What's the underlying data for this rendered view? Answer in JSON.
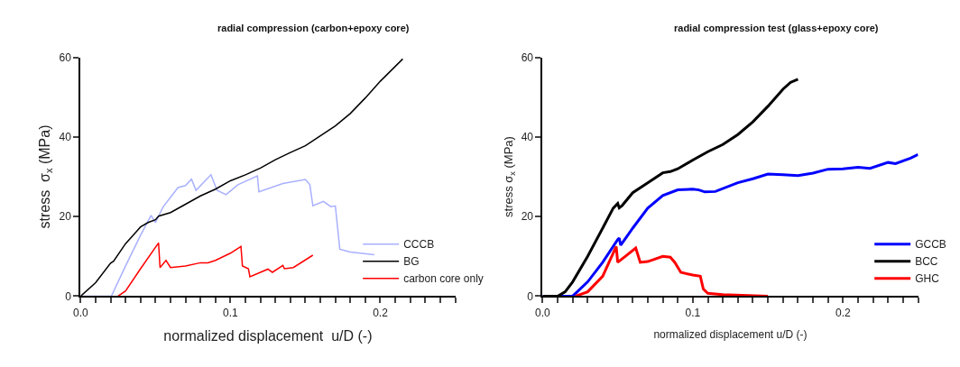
{
  "chart_data": [
    {
      "type": "line",
      "title": "radial compression (carbon+epoxy core)",
      "xlabel": "normalized displacement  u/D (-)",
      "ylabel": "stress  σ$_{x}$ (MPa)",
      "xlim": [
        0,
        0.25
      ],
      "ylim": [
        0,
        60
      ],
      "xticks": [
        {
          "value": 0,
          "label": "0.0"
        },
        {
          "value": 0.01,
          "label": null
        },
        {
          "value": 0.02,
          "label": null
        },
        {
          "value": 0.03,
          "label": null
        },
        {
          "value": 0.04,
          "label": null
        },
        {
          "value": 0.05,
          "label": null
        },
        {
          "value": 0.06,
          "label": null
        },
        {
          "value": 0.07,
          "label": null
        },
        {
          "value": 0.08,
          "label": null
        },
        {
          "value": 0.09,
          "label": null
        },
        {
          "value": 0.1,
          "label": "0.1"
        },
        {
          "value": 0.11,
          "label": null
        },
        {
          "value": 0.12,
          "label": null
        },
        {
          "value": 0.13,
          "label": null
        },
        {
          "value": 0.14,
          "label": null
        },
        {
          "value": 0.15,
          "label": null
        },
        {
          "value": 0.16,
          "label": null
        },
        {
          "value": 0.17,
          "label": null
        },
        {
          "value": 0.18,
          "label": null
        },
        {
          "value": 0.19,
          "label": null
        },
        {
          "value": 0.2,
          "label": "0.2"
        },
        {
          "value": 0.21,
          "label": null
        },
        {
          "value": 0.22,
          "label": null
        },
        {
          "value": 0.23,
          "label": null
        },
        {
          "value": 0.24,
          "label": null
        },
        {
          "value": 0.25,
          "label": null
        }
      ],
      "yticks": [
        0,
        20,
        40,
        60
      ],
      "legend": "bottom right",
      "marker": "none",
      "line_style": "solid",
      "series": [
        {
          "name": "CCCB",
          "color": "#a8b0ff",
          "x": [
            0,
            0.0205,
            0.03,
            0.04,
            0.047,
            0.05,
            0.055,
            0.065,
            0.07,
            0.074,
            0.077,
            0.087,
            0.091,
            0.097,
            0.105,
            0.118,
            0.119,
            0.135,
            0.15,
            0.153,
            0.155,
            0.162,
            0.167,
            0.17,
            0.173,
            0.18,
            0.196
          ],
          "values": [
            0,
            0,
            7.6,
            15.3,
            20.3,
            18.5,
            22.4,
            27.3,
            27.8,
            29.4,
            26.6,
            30.5,
            26.6,
            25.5,
            28,
            30.2,
            26.2,
            28.3,
            29.3,
            28,
            22.7,
            23.8,
            22.5,
            22.7,
            11.8,
            11.1,
            10.4
          ]
        },
        {
          "name": "BG",
          "color": "#000000",
          "x": [
            0,
            0.01,
            0.02,
            0.022,
            0.03,
            0.035,
            0.04,
            0.045,
            0.05,
            0.052,
            0.06,
            0.07,
            0.08,
            0.09,
            0.1,
            0.11,
            0.12,
            0.13,
            0.14,
            0.15,
            0.16,
            0.17,
            0.18,
            0.19,
            0.2,
            0.215
          ],
          "values": [
            0,
            3.4,
            8.3,
            8.8,
            13.2,
            15.3,
            17.4,
            18.5,
            19.2,
            20.1,
            21,
            23.1,
            25.2,
            26.9,
            29,
            30.5,
            32.2,
            34.3,
            36.1,
            37.8,
            40.3,
            42.8,
            45.9,
            49.8,
            54,
            59.6
          ]
        },
        {
          "name": "carbon core only",
          "color": "#ff0000",
          "x": [
            0.025,
            0.03,
            0.04,
            0.052,
            0.053,
            0.057,
            0.06,
            0.07,
            0.08,
            0.085,
            0.09,
            0.1,
            0.107,
            0.108,
            0.112,
            0.113,
            0.125,
            0.128,
            0.135,
            0.136,
            0.142,
            0.155
          ],
          "values": [
            0,
            1.3,
            6.9,
            13.4,
            7.2,
            9,
            7.2,
            7.6,
            8.4,
            8.4,
            9,
            10.8,
            12.5,
            7.6,
            6.9,
            4.9,
            6.8,
            6,
            7.7,
            6.9,
            7.2,
            10.3
          ]
        }
      ]
    },
    {
      "type": "line",
      "title": "radial compression test (glass+epoxy core)",
      "xlabel": "normalized displacement u/D (-)",
      "ylabel": "stress σ$_{x}$ (MPa)",
      "xlim": [
        0,
        0.25
      ],
      "ylim": [
        0,
        60
      ],
      "xticks": [
        {
          "value": 0,
          "label": "0.0"
        },
        {
          "value": 0.01,
          "label": null
        },
        {
          "value": 0.02,
          "label": null
        },
        {
          "value": 0.03,
          "label": null
        },
        {
          "value": 0.04,
          "label": null
        },
        {
          "value": 0.05,
          "label": null
        },
        {
          "value": 0.06,
          "label": null
        },
        {
          "value": 0.07,
          "label": null
        },
        {
          "value": 0.08,
          "label": null
        },
        {
          "value": 0.09,
          "label": null
        },
        {
          "value": 0.1,
          "label": "0.1"
        },
        {
          "value": 0.11,
          "label": null
        },
        {
          "value": 0.12,
          "label": null
        },
        {
          "value": 0.13,
          "label": null
        },
        {
          "value": 0.14,
          "label": null
        },
        {
          "value": 0.15,
          "label": null
        },
        {
          "value": 0.16,
          "label": null
        },
        {
          "value": 0.17,
          "label": null
        },
        {
          "value": 0.18,
          "label": null
        },
        {
          "value": 0.19,
          "label": null
        },
        {
          "value": 0.2,
          "label": "0.2"
        },
        {
          "value": 0.21,
          "label": null
        },
        {
          "value": 0.22,
          "label": null
        },
        {
          "value": 0.23,
          "label": null
        },
        {
          "value": 0.24,
          "label": null
        },
        {
          "value": 0.25,
          "label": null
        }
      ],
      "yticks": [
        0,
        20,
        40,
        60
      ],
      "legend": "bottom right",
      "marker": "none",
      "line_style": "solid",
      "series": [
        {
          "name": "GCCB",
          "color": "#0000ff",
          "x": [
            0,
            0.02,
            0.03,
            0.04,
            0.05,
            0.051,
            0.052,
            0.06,
            0.07,
            0.08,
            0.09,
            0.1,
            0.104,
            0.108,
            0.115,
            0.13,
            0.14,
            0.15,
            0.16,
            0.17,
            0.18,
            0.19,
            0.2,
            0.21,
            0.218,
            0.23,
            0.235,
            0.245,
            0.25
          ],
          "values": [
            0,
            0,
            3.6,
            8.5,
            14.2,
            14.6,
            12.8,
            17.1,
            22.1,
            25.3,
            26.7,
            26.9,
            26.7,
            26.2,
            26.3,
            28.5,
            29.5,
            30.7,
            30.5,
            30.3,
            30.9,
            31.9,
            32,
            32.4,
            32.1,
            33.6,
            33.3,
            34.7,
            35.6
          ]
        },
        {
          "name": "BCC",
          "color": "#000000",
          "x": [
            0,
            0.01,
            0.015,
            0.02,
            0.03,
            0.04,
            0.047,
            0.05,
            0.051,
            0.053,
            0.06,
            0.07,
            0.08,
            0.085,
            0.09,
            0.1,
            0.11,
            0.12,
            0.13,
            0.14,
            0.15,
            0.16,
            0.165,
            0.17
          ],
          "values": [
            0,
            0,
            1.1,
            3.6,
            10,
            17.1,
            22.1,
            23.3,
            22.2,
            22.8,
            26,
            28.5,
            31,
            31.3,
            32,
            34.2,
            36.3,
            38.1,
            40.6,
            43.8,
            47.7,
            52,
            53.7,
            54.5
          ]
        },
        {
          "name": "GHC",
          "color": "#ff0000",
          "x": [
            0.022,
            0.03,
            0.04,
            0.049,
            0.05,
            0.055,
            0.062,
            0.065,
            0.07,
            0.08,
            0.085,
            0.088,
            0.092,
            0.1,
            0.105,
            0.107,
            0.11,
            0.12,
            0.15
          ],
          "values": [
            0,
            1.1,
            5,
            12.5,
            8.5,
            10,
            12.1,
            8.5,
            8.7,
            10,
            9.8,
            8.5,
            6,
            5.3,
            5,
            1.8,
            0.7,
            0.4,
            0
          ]
        }
      ]
    }
  ]
}
